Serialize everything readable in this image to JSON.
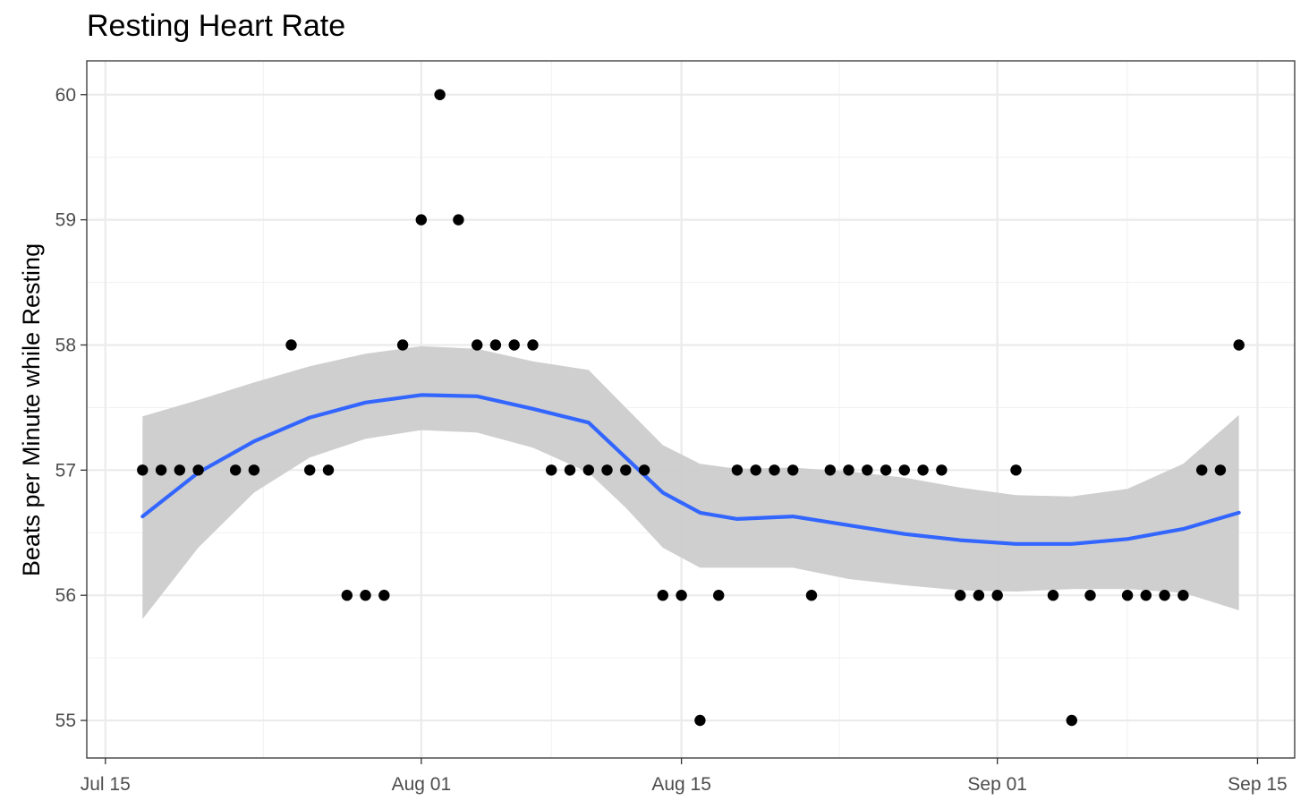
{
  "chart_data": {
    "type": "scatter",
    "title": "Resting Heart Rate",
    "xlabel": "",
    "ylabel": "Beats per Minute while Resting",
    "x_type": "date",
    "xlim": [
      "2022-07-14",
      "2022-09-17"
    ],
    "ylim": [
      54.7,
      60.27
    ],
    "x_ticks": [
      {
        "date": "2022-07-15",
        "label": "Jul 15"
      },
      {
        "date": "2022-08-01",
        "label": "Aug 01"
      },
      {
        "date": "2022-08-15",
        "label": "Aug 15"
      },
      {
        "date": "2022-09-01",
        "label": "Sep 01"
      },
      {
        "date": "2022-09-15",
        "label": "Sep 15"
      }
    ],
    "y_ticks": [
      55,
      56,
      57,
      58,
      59,
      60
    ],
    "grid": true,
    "legend": "none",
    "colors": {
      "points": "#000000",
      "smooth_line": "#3366ff",
      "ribbon": "#cccccc",
      "panel_border": "#333333",
      "grid_major": "#ebebeb",
      "grid_minor": "#f2f2f2"
    },
    "points": [
      {
        "x": "2022-07-17",
        "y": 57
      },
      {
        "x": "2022-07-18",
        "y": 57
      },
      {
        "x": "2022-07-19",
        "y": 57
      },
      {
        "x": "2022-07-20",
        "y": 57
      },
      {
        "x": "2022-07-22",
        "y": 57
      },
      {
        "x": "2022-07-23",
        "y": 57
      },
      {
        "x": "2022-07-25",
        "y": 58
      },
      {
        "x": "2022-07-26",
        "y": 57
      },
      {
        "x": "2022-07-27",
        "y": 57
      },
      {
        "x": "2022-07-28",
        "y": 56
      },
      {
        "x": "2022-07-29",
        "y": 56
      },
      {
        "x": "2022-07-30",
        "y": 56
      },
      {
        "x": "2022-07-31",
        "y": 58
      },
      {
        "x": "2022-08-01",
        "y": 59
      },
      {
        "x": "2022-08-02",
        "y": 60
      },
      {
        "x": "2022-08-03",
        "y": 59
      },
      {
        "x": "2022-08-04",
        "y": 58
      },
      {
        "x": "2022-08-05",
        "y": 58
      },
      {
        "x": "2022-08-06",
        "y": 58
      },
      {
        "x": "2022-08-07",
        "y": 58
      },
      {
        "x": "2022-08-08",
        "y": 57
      },
      {
        "x": "2022-08-09",
        "y": 57
      },
      {
        "x": "2022-08-10",
        "y": 57
      },
      {
        "x": "2022-08-11",
        "y": 57
      },
      {
        "x": "2022-08-12",
        "y": 57
      },
      {
        "x": "2022-08-13",
        "y": 57
      },
      {
        "x": "2022-08-14",
        "y": 56
      },
      {
        "x": "2022-08-15",
        "y": 56
      },
      {
        "x": "2022-08-16",
        "y": 55
      },
      {
        "x": "2022-08-17",
        "y": 56
      },
      {
        "x": "2022-08-18",
        "y": 57
      },
      {
        "x": "2022-08-19",
        "y": 57
      },
      {
        "x": "2022-08-20",
        "y": 57
      },
      {
        "x": "2022-08-21",
        "y": 57
      },
      {
        "x": "2022-08-22",
        "y": 56
      },
      {
        "x": "2022-08-23",
        "y": 57
      },
      {
        "x": "2022-08-24",
        "y": 57
      },
      {
        "x": "2022-08-25",
        "y": 57
      },
      {
        "x": "2022-08-26",
        "y": 57
      },
      {
        "x": "2022-08-27",
        "y": 57
      },
      {
        "x": "2022-08-28",
        "y": 57
      },
      {
        "x": "2022-08-29",
        "y": 57
      },
      {
        "x": "2022-08-30",
        "y": 56
      },
      {
        "x": "2022-08-31",
        "y": 56
      },
      {
        "x": "2022-09-01",
        "y": 56
      },
      {
        "x": "2022-09-02",
        "y": 57
      },
      {
        "x": "2022-09-04",
        "y": 56
      },
      {
        "x": "2022-09-05",
        "y": 55
      },
      {
        "x": "2022-09-06",
        "y": 56
      },
      {
        "x": "2022-09-08",
        "y": 56
      },
      {
        "x": "2022-09-09",
        "y": 56
      },
      {
        "x": "2022-09-10",
        "y": 56
      },
      {
        "x": "2022-09-11",
        "y": 56
      },
      {
        "x": "2022-09-12",
        "y": 57
      },
      {
        "x": "2022-09-13",
        "y": 57
      },
      {
        "x": "2022-09-14",
        "y": 58
      }
    ],
    "smooth": {
      "name": "",
      "x": [
        "2022-07-17",
        "2022-07-20",
        "2022-07-23",
        "2022-07-26",
        "2022-07-29",
        "2022-08-01",
        "2022-08-04",
        "2022-08-07",
        "2022-08-10",
        "2022-08-12",
        "2022-08-14",
        "2022-08-16",
        "2022-08-18",
        "2022-08-21",
        "2022-08-24",
        "2022-08-27",
        "2022-08-30",
        "2022-09-02",
        "2022-09-05",
        "2022-09-08",
        "2022-09-11",
        "2022-09-14"
      ],
      "y": [
        56.63,
        56.98,
        57.23,
        57.42,
        57.54,
        57.6,
        57.59,
        57.49,
        57.38,
        57.1,
        56.82,
        56.66,
        56.61,
        56.63,
        56.56,
        56.49,
        56.44,
        56.41,
        56.41,
        56.45,
        56.53,
        56.66
      ],
      "lower": [
        55.81,
        56.38,
        56.82,
        57.1,
        57.25,
        57.32,
        57.3,
        57.18,
        56.98,
        56.7,
        56.38,
        56.22,
        56.22,
        56.22,
        56.13,
        56.08,
        56.04,
        56.03,
        56.05,
        56.05,
        56.02,
        55.88
      ],
      "upper": [
        57.43,
        57.56,
        57.7,
        57.83,
        57.93,
        57.99,
        57.97,
        57.87,
        57.8,
        57.5,
        57.2,
        57.05,
        57.01,
        57.02,
        56.99,
        56.94,
        56.86,
        56.8,
        56.79,
        56.85,
        57.05,
        57.44
      ]
    }
  }
}
